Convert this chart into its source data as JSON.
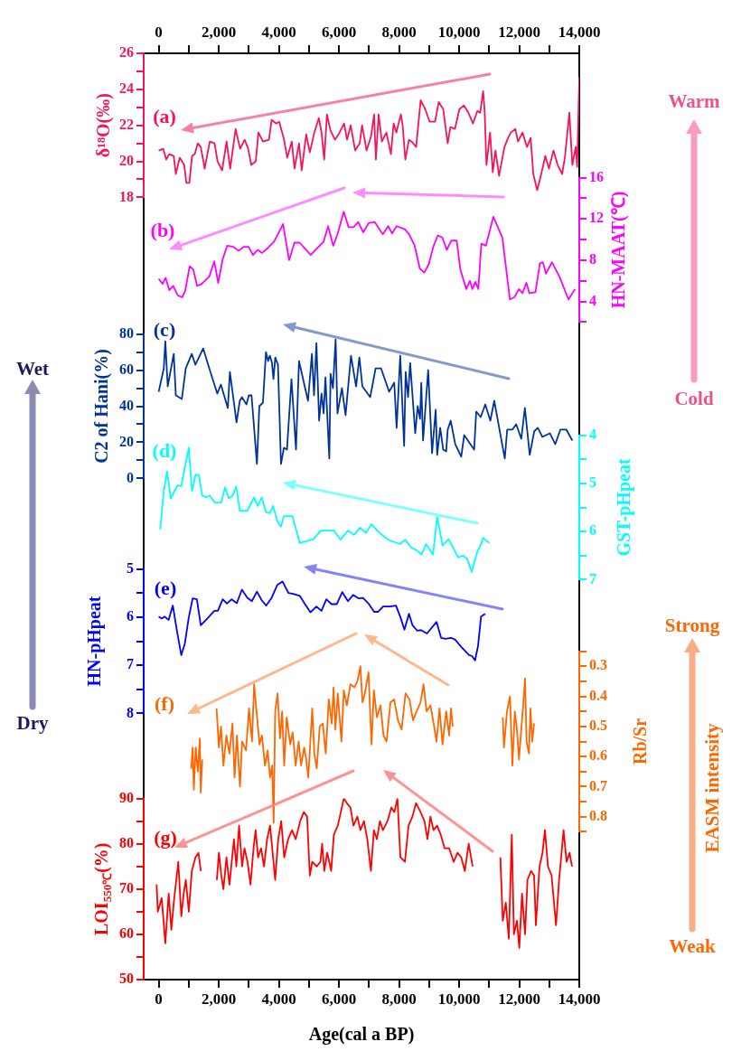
{
  "chart_data": [
    {
      "type": "line",
      "ylabel": "δ¹⁸O(‰)",
      "ylim": [
        18,
        26
      ],
      "yticks": [
        18,
        {
          "value": 19,
          "label": null
        },
        20,
        {
          "value": 21,
          "label": null
        },
        22,
        {
          "value": 23,
          "label": null
        },
        24,
        {
          "value": 25,
          "label": null
        },
        26
      ],
      "xlim": [
        -500,
        14000
      ],
      "xticks": [
        0,
        {
          "value": 1000,
          "label": null
        },
        {
          "value": 2000,
          "label": "2,000"
        },
        {
          "value": 3000,
          "label": null
        },
        {
          "value": 4000,
          "label": "4,000"
        },
        {
          "value": 5000,
          "label": null
        },
        {
          "value": 6000,
          "label": "6,000"
        },
        {
          "value": 7000,
          "label": null
        },
        {
          "value": 8000,
          "label": "8,000"
        },
        {
          "value": 9000,
          "label": null
        },
        {
          "value": 10000,
          "label": "10,000"
        },
        {
          "value": 11000,
          "label": null
        },
        {
          "value": 12000,
          "label": "12,000"
        },
        {
          "value": 13000,
          "label": null
        },
        {
          "value": 14000,
          "label": "14,000"
        }
      ],
      "marker": "none",
      "annotations": [
        "(a)"
      ],
      "series": [
        {
          "color": "#f5145c",
          "x": [
            0,
            150,
            250,
            350,
            500,
            570,
            700,
            850,
            920,
            1020,
            1110,
            1200,
            1300,
            1400,
            1530,
            1700,
            1860,
            1960,
            2110,
            2260,
            2380,
            2560,
            2710,
            2860,
            2980,
            3080,
            3230,
            3320,
            3470,
            3670,
            3760,
            3910,
            4010,
            4160,
            4280,
            4430,
            4520,
            4670,
            4760,
            4910,
            5030,
            5180,
            5330,
            5420,
            5510,
            5600,
            5720,
            5870,
            6020,
            6170,
            6270,
            6390,
            6540,
            6690,
            6770,
            6920,
            7070,
            7170,
            7230,
            7320,
            7430,
            7580,
            7730,
            7820,
            7910,
            8060,
            8120,
            8210,
            8330,
            8420,
            8570,
            8720,
            8870,
            9020,
            9200,
            9320,
            9470,
            9620,
            9710,
            9860,
            10010,
            10160,
            10310,
            10460,
            10610,
            10700,
            10800,
            10850,
            10910,
            11030,
            11120,
            11210,
            11330,
            11420,
            11510,
            11630,
            11720,
            11870,
            11960,
            12110,
            12260,
            12380,
            12470,
            12600,
            12720,
            12870,
            12990,
            13140,
            13280,
            13430,
            13520,
            13670,
            13770,
            13880,
            13930,
            14000
          ],
          "values": [
            20.6,
            20.7,
            20.1,
            20.4,
            20.3,
            19.3,
            20.2,
            19.8,
            18.8,
            18.8,
            20.3,
            20.4,
            21,
            20.8,
            19.6,
            21.1,
            21,
            20,
            19.5,
            21.1,
            19.6,
            21.8,
            20.7,
            21.2,
            20.7,
            19.8,
            20,
            21.6,
            21.1,
            21.2,
            22.3,
            22.1,
            22.2,
            21.3,
            20.2,
            21.1,
            19.6,
            21,
            19.5,
            21.5,
            20.5,
            21.6,
            22.4,
            21.6,
            20.1,
            22.6,
            21.7,
            21.2,
            21.6,
            22.1,
            21.2,
            22,
            20.6,
            21,
            22,
            20.6,
            21.4,
            22.6,
            20.1,
            22.6,
            21.1,
            21.6,
            20.4,
            22.1,
            21.6,
            22.6,
            22,
            20.1,
            21.2,
            21.1,
            20.8,
            23.4,
            22.9,
            22.2,
            22.2,
            23.3,
            22.9,
            21,
            21.9,
            21.8,
            22.9,
            23.1,
            22.7,
            22.1,
            22.8,
            22.7,
            23.9,
            22.8,
            19.8,
            21.6,
            19.4,
            20.6,
            19.2,
            20,
            20.8,
            21.3,
            21.6,
            21.8,
            21.1,
            21.6,
            20.8,
            21.3,
            19.3,
            18.4,
            19.2,
            20.3,
            19.6,
            20.6,
            19.8,
            19.3,
            20.2,
            22.7,
            19.8,
            20.8,
            19.7,
            24.7
          ]
        }
      ]
    },
    {
      "type": "line",
      "ylabel": "HN-MAAT(℃)",
      "ylim": [
        2,
        16
      ],
      "yticks": [
        {
          "value": 2,
          "label": null
        },
        4,
        {
          "value": 6,
          "label": null
        },
        8,
        {
          "value": 10,
          "label": null
        },
        12,
        {
          "value": 14,
          "label": null
        },
        16
      ],
      "xlim": [
        -500,
        14000
      ],
      "tick_labels": "y",
      "marker": "none",
      "annotations": [
        "(b)"
      ],
      "series": [
        {
          "color": "#ff00ff",
          "x": [
            0,
            130,
            230,
            350,
            480,
            630,
            780,
            880,
            1030,
            1150,
            1280,
            1430,
            1680,
            1850,
            1980,
            2130,
            2280,
            2480,
            2660,
            2840,
            2990,
            3140,
            3290,
            3440,
            3640,
            3840,
            4140,
            4340,
            4520,
            4690,
            5060,
            5290,
            5490,
            5640,
            5810,
            5960,
            6160,
            6320,
            6490,
            6640,
            6810,
            6990,
            7190,
            7460,
            7640,
            7770,
            7920,
            8190,
            8340,
            8520,
            8690,
            8840,
            8990,
            9140,
            9290,
            9440,
            9590,
            9740,
            9920,
            10040,
            10240,
            10360,
            10440,
            10540,
            10640,
            10740,
            10890,
            11140,
            11440,
            11690,
            11840,
            11990,
            12110,
            12240,
            12340,
            12540,
            12690,
            12790,
            12890,
            13090,
            13340,
            13640,
            13860
          ],
          "values": [
            6.2,
            5.7,
            6.3,
            5.1,
            5.5,
            4.6,
            4.4,
            5,
            7.4,
            7.1,
            5.5,
            5.7,
            6.4,
            7.9,
            5.8,
            8.1,
            9.4,
            9.3,
            8.9,
            9.3,
            9.3,
            8.5,
            9,
            8.7,
            9.2,
            9.8,
            11.5,
            8,
            9.7,
            9.7,
            8.5,
            9.2,
            9.8,
            11.3,
            9.4,
            10.6,
            12.7,
            11.2,
            11.2,
            11.7,
            10.7,
            11.6,
            11.7,
            10.5,
            11.3,
            10.6,
            11.3,
            11,
            10.5,
            9.4,
            7.2,
            6.8,
            7.6,
            9.3,
            10.4,
            10.2,
            9,
            9.9,
            9.9,
            7.1,
            5.2,
            6,
            5.2,
            5.9,
            5.2,
            9.6,
            9.4,
            12.2,
            10.2,
            4.2,
            4.4,
            5.2,
            4.8,
            5.8,
            4.8,
            4.9,
            7.7,
            7.8,
            6.7,
            7.8,
            6.4,
            4.2,
            5.2
          ]
        }
      ]
    },
    {
      "type": "line",
      "ylabel": "C2 of Hani(%)",
      "ylim": [
        0,
        80
      ],
      "yticks": [
        0,
        {
          "value": 10,
          "label": null
        },
        20,
        {
          "value": 30,
          "label": null
        },
        40,
        {
          "value": 50,
          "label": null
        },
        60,
        {
          "value": 70,
          "label": null
        },
        80
      ],
      "xlim": [
        -500,
        14000
      ],
      "tick_labels": "y",
      "marker": "none",
      "annotations": [
        "(c)"
      ],
      "series": [
        {
          "color": "#003399",
          "x": [
            0,
            170,
            220,
            300,
            500,
            570,
            770,
            900,
            1100,
            1220,
            1480,
            1720,
            1950,
            2070,
            2300,
            2370,
            2590,
            2700,
            2770,
            2920,
            3000,
            3090,
            3270,
            3350,
            3470,
            3570,
            3640,
            3700,
            3770,
            3820,
            3880,
            3970,
            4070,
            4170,
            4270,
            4420,
            4570,
            4670,
            4970,
            5100,
            5170,
            5250,
            5340,
            5420,
            5490,
            5550,
            5680,
            5720,
            5800,
            5890,
            5950,
            6100,
            6220,
            6400,
            6570,
            6680,
            6780,
            7040,
            7220,
            7400,
            7670,
            7840,
            7920,
            8040,
            8170,
            8220,
            8300,
            8370,
            8540,
            8620,
            8700,
            8740,
            8800,
            8970,
            9100,
            9220,
            9270,
            9370,
            9470,
            9570,
            9620,
            9720,
            9870,
            10070,
            10170,
            10500,
            10570,
            10720,
            10870,
            11040,
            11170,
            11520,
            11600,
            11770,
            11900,
            12070,
            12190,
            12350,
            12500,
            12620,
            12770,
            13020,
            13200,
            13370,
            13570,
            13770
          ],
          "values": [
            48,
            61,
            76,
            51,
            69,
            46,
            44,
            61,
            69,
            63,
            72,
            59,
            47,
            52,
            39,
            59,
            31,
            43,
            45,
            41,
            46,
            46,
            8,
            40,
            42,
            70,
            65,
            68,
            64,
            55,
            67,
            63,
            8,
            17,
            16,
            55,
            16,
            65,
            43,
            69,
            46,
            75,
            32,
            47,
            36,
            56,
            11,
            58,
            50,
            77,
            36,
            50,
            35,
            68,
            51,
            67,
            51,
            45,
            61,
            61,
            48,
            53,
            28,
            68,
            18,
            59,
            45,
            64,
            25,
            40,
            33,
            53,
            21,
            60,
            14,
            38,
            13,
            28,
            16,
            15,
            27,
            32,
            19,
            12,
            24,
            16,
            37,
            34,
            41,
            32,
            43,
            11,
            27,
            27,
            30,
            22,
            39,
            13,
            26,
            28,
            23,
            25,
            19,
            27,
            27,
            21
          ]
        }
      ]
    },
    {
      "type": "line",
      "ylabel": "GST-pHpeat",
      "ylim": [
        7,
        4
      ],
      "yticks": [
        4,
        {
          "value": 4.5,
          "label": null
        },
        5,
        {
          "value": 5.5,
          "label": null
        },
        6,
        {
          "value": 6.5,
          "label": null
        },
        7
      ],
      "xlim": [
        -500,
        14000
      ],
      "tick_labels": "y",
      "marker": "none",
      "annotations": [
        "(d)"
      ],
      "series": [
        {
          "color": "#00ffff",
          "x": [
            50,
            170,
            280,
            400,
            500,
            630,
            750,
            850,
            1000,
            1110,
            1230,
            1330,
            1450,
            1570,
            1700,
            1870,
            2080,
            2210,
            2330,
            2450,
            2580,
            2700,
            2950,
            3170,
            3300,
            3430,
            3570,
            3700,
            3810,
            3950,
            4070,
            4170,
            4450,
            4700,
            5150,
            5400,
            5830,
            6050,
            6300,
            6500,
            6700,
            6900,
            7080,
            7300,
            7550,
            7700,
            8030,
            8210,
            8400,
            8580,
            8750,
            8900,
            9130,
            9270,
            9450,
            9650,
            9970,
            10130,
            10270,
            10420,
            10600,
            10700,
            10800,
            11000
          ],
          "values": [
            5.96,
            5.16,
            4.75,
            5.32,
            5.19,
            5.04,
            5.06,
            4.73,
            4.26,
            5.16,
            4.82,
            4.82,
            5.25,
            5.29,
            5.25,
            5.4,
            5.4,
            5.08,
            5.31,
            5.27,
            5.06,
            5.57,
            5.57,
            5.29,
            5.47,
            5.29,
            5.6,
            5.62,
            5.47,
            5.79,
            5.9,
            5.68,
            5.68,
            6.24,
            6.16,
            5.98,
            5.98,
            6.17,
            5.98,
            6.07,
            5.92,
            6.03,
            5.85,
            6,
            6.13,
            6.19,
            6.26,
            6.17,
            6.33,
            6.39,
            6.48,
            6.26,
            6.48,
            5.7,
            6.29,
            6.16,
            6.54,
            6.5,
            6.57,
            6.84,
            6.43,
            6.31,
            6.13,
            6.24
          ]
        }
      ]
    },
    {
      "type": "line",
      "ylabel": "HN-pHpeat",
      "ylim": [
        8,
        5
      ],
      "yticks": [
        5,
        {
          "value": 5.5,
          "label": null
        },
        6,
        {
          "value": 6.5,
          "label": null
        },
        7,
        {
          "value": 7.5,
          "label": null
        },
        8
      ],
      "xlim": [
        -500,
        14000
      ],
      "tick_labels": "y",
      "marker": "none",
      "annotations": [
        "(e)"
      ],
      "series": [
        {
          "color": "#0000ff",
          "x": [
            0,
            100,
            200,
            330,
            470,
            600,
            750,
            870,
            1000,
            1130,
            1270,
            1400,
            1650,
            1850,
            1970,
            2130,
            2270,
            2430,
            2600,
            2770,
            2950,
            3100,
            3270,
            3430,
            3580,
            3750,
            3950,
            4120,
            4320,
            4500,
            4700,
            4870,
            5050,
            5250,
            5420,
            5580,
            5750,
            5930,
            6110,
            6300,
            6470,
            6650,
            6800,
            7000,
            7170,
            7300,
            7470,
            7700,
            7900,
            8050,
            8180,
            8330,
            8450,
            8600,
            8730,
            8930,
            9250,
            9400,
            9550,
            9730,
            9870,
            10100,
            10330,
            10430,
            10530,
            10630,
            10730,
            10870
          ],
          "values": [
            5.99,
            6.03,
            5.99,
            6.06,
            5.76,
            6.26,
            6.79,
            6.55,
            6.01,
            5.61,
            5.63,
            6.17,
            6.01,
            5.87,
            5.87,
            5.63,
            5.72,
            5.63,
            5.71,
            5.43,
            5.6,
            5.67,
            5.47,
            5.65,
            5.76,
            5.61,
            5.33,
            5.26,
            5.5,
            5.52,
            5.56,
            5.73,
            5.9,
            5.78,
            5.87,
            5.63,
            5.73,
            5.73,
            5.48,
            5.67,
            5.54,
            5.61,
            5.6,
            5.73,
            5.89,
            5.89,
            5.78,
            5.78,
            5.76,
            6.01,
            6.26,
            5.93,
            6.17,
            6.28,
            6.27,
            6.34,
            6.1,
            6.43,
            6.45,
            6.43,
            6.47,
            6.64,
            6.79,
            6.81,
            6.9,
            6.6,
            5.99,
            5.93
          ]
        }
      ]
    },
    {
      "type": "line",
      "ylabel": "Rb/Sr",
      "ylim": [
        0.85,
        0.25
      ],
      "yticks": [
        {
          "value": 0.25,
          "label": null
        },
        0.3,
        {
          "value": 0.35,
          "label": null
        },
        0.4,
        {
          "value": 0.45,
          "label": null
        },
        0.5,
        {
          "value": 0.55,
          "label": null
        },
        0.6,
        {
          "value": 0.65,
          "label": null
        },
        0.7,
        {
          "value": 0.75,
          "label": null
        },
        0.8,
        {
          "value": 0.85,
          "label": null
        }
      ],
      "xlim": [
        -500,
        14000
      ],
      "tick_labels": "y",
      "marker": "none",
      "annotations": [
        "(f)"
      ],
      "series": [
        {
          "color": "#ff6600",
          "x": [
            1082,
            1130,
            1170,
            1230,
            1300,
            1370,
            1400,
            1450,
            1700,
            1925,
            2004,
            2074,
            2154,
            2255,
            2355,
            2455,
            2525,
            2605,
            2705,
            2776,
            2906,
            3006,
            3106,
            3176,
            3256,
            3357,
            3437,
            3537,
            3627,
            3707,
            3777,
            3827,
            3877,
            3958,
            4038,
            4108,
            4178,
            4259,
            4379,
            4459,
            4559,
            4659,
            4740,
            4840,
            4910,
            4980,
            5110,
            5180,
            5260,
            5360,
            5461,
            5561,
            5661,
            5761,
            5821,
            5881,
            5962,
            6082,
            6162,
            6262,
            6383,
            6513,
            6613,
            6713,
            6783,
            6863,
            6983,
            7084,
            7164,
            7264,
            7384,
            7485,
            7585,
            7715,
            7835,
            7966,
            8086,
            8216,
            8346,
            8466,
            8586,
            8716,
            8817,
            8917,
            9047,
            9168,
            9248,
            9348,
            9448,
            9568,
            9669,
            9729,
            9789,
            10600,
            11453,
            11493,
            11594,
            11694,
            11774,
            11854,
            11924,
            11994,
            12075,
            12125,
            12195,
            12245,
            12325,
            12375,
            12435,
            12496
          ],
          "values": [
            0.64,
            0.57,
            0.71,
            0.57,
            0.65,
            0.54,
            0.72,
            0.61,
            null,
            0.44,
            0.57,
            0.5,
            0.63,
            0.53,
            0.59,
            0.49,
            0.67,
            0.53,
            0.7,
            0.55,
            0.58,
            0.44,
            0.55,
            0.36,
            0.45,
            0.56,
            0.53,
            0.63,
            0.58,
            0.67,
            0.63,
            0.82,
            0.45,
            0.39,
            0.54,
            0.45,
            0.63,
            0.47,
            0.56,
            0.52,
            0.63,
            0.55,
            0.63,
            0.57,
            0.61,
            0.67,
            0.44,
            0.59,
            0.64,
            0.5,
            0.49,
            0.59,
            0.41,
            0.49,
            0.37,
            0.51,
            0.39,
            0.55,
            0.38,
            0.43,
            0.36,
            0.37,
            0.35,
            0.3,
            0.42,
            0.39,
            0.32,
            0.56,
            0.38,
            0.47,
            0.43,
            0.53,
            0.55,
            0.42,
            0.41,
            0.48,
            0.51,
            0.39,
            0.41,
            0.48,
            0.45,
            0.42,
            0.36,
            0.45,
            0.43,
            0.5,
            0.55,
            0.44,
            0.56,
            0.45,
            0.53,
            0.44,
            0.5,
            null,
            0.47,
            0.57,
            0.45,
            0.4,
            0.63,
            0.45,
            0.51,
            0.61,
            0.5,
            0.44,
            0.34,
            0.55,
            0.59,
            0.44,
            0.55,
            0.49
          ]
        }
      ]
    },
    {
      "type": "line",
      "ylabel": "LOI$_{550℃}$(%)",
      "ylim": [
        50,
        90
      ],
      "yticks": [
        50,
        {
          "value": 55,
          "label": null
        },
        60,
        {
          "value": 65,
          "label": null
        },
        70,
        {
          "value": 75,
          "label": null
        },
        80,
        {
          "value": 85,
          "label": null
        },
        90
      ],
      "xlabel": "Age(cal a BP)",
      "xlim": [
        -500,
        14000
      ],
      "xticks": [
        0,
        {
          "value": 1000,
          "label": null
        },
        {
          "value": 2000,
          "label": "2,000"
        },
        {
          "value": 3000,
          "label": null
        },
        {
          "value": 4000,
          "label": "4,000"
        },
        {
          "value": 5000,
          "label": null
        },
        {
          "value": 6000,
          "label": "6,000"
        },
        {
          "value": 7000,
          "label": null
        },
        {
          "value": 8000,
          "label": "8,000"
        },
        {
          "value": 9000,
          "label": null
        },
        {
          "value": 10000,
          "label": "10,000"
        },
        {
          "value": 11000,
          "label": null
        },
        {
          "value": 12000,
          "label": "12,000"
        },
        {
          "value": 13000,
          "label": null
        },
        {
          "value": 14000,
          "label": "14,000"
        }
      ],
      "marker": "none",
      "annotations": [
        "(g)"
      ],
      "series": [
        {
          "color": "#ff0000",
          "x": [
            -70,
            -30,
            100,
            220,
            331,
            421,
            501,
            651,
            752,
            831,
            902,
            1002,
            1102,
            1222,
            1323,
            1403,
            1650,
            1934,
            2004,
            2084,
            2154,
            2255,
            2355,
            2505,
            2585,
            2675,
            2776,
            2856,
            2956,
            3056,
            3156,
            3226,
            3307,
            3407,
            3507,
            3607,
            3707,
            3807,
            3877,
            3978,
            4078,
            4178,
            4308,
            4439,
            4559,
            4710,
            4830,
            4940,
            5030,
            5110,
            5260,
            5381,
            5441,
            5511,
            5611,
            5741,
            5831,
            5962,
            6162,
            6262,
            6383,
            6483,
            6613,
            6713,
            6833,
            6943,
            7064,
            7164,
            7264,
            7364,
            7465,
            7615,
            7745,
            7845,
            7946,
            8046,
            8196,
            8316,
            8446,
            8566,
            8716,
            8846,
            8947,
            9047,
            9147,
            9268,
            9388,
            9518,
            9669,
            9819,
            9949,
            10070,
            10190,
            10320,
            10450,
            10900,
            11373,
            11453,
            11554,
            11654,
            11754,
            11824,
            11924,
            12004,
            12094,
            12195,
            12275,
            12395,
            12496,
            12556,
            12676,
            12776,
            12857,
            12957,
            13077,
            13227,
            13327,
            13397,
            13477,
            13577,
            13677,
            13757
          ],
          "values": [
            71,
            65,
            68,
            58,
            69,
            61,
            67,
            76,
            64,
            69,
            72,
            65,
            74,
            77,
            78,
            74,
            null,
            72,
            78,
            73,
            70,
            77,
            71,
            81,
            75,
            84,
            75,
            79,
            76,
            71,
            79,
            83,
            77,
            79,
            75,
            81,
            84,
            77,
            72,
            81,
            85,
            77,
            81,
            83,
            81,
            85,
            87,
            86,
            73,
            76,
            75,
            76,
            80,
            74,
            78,
            74,
            82,
            84,
            90,
            89,
            88,
            84,
            86,
            83,
            85,
            81,
            74,
            83,
            81,
            85,
            83,
            85,
            88,
            87,
            90,
            77,
            76,
            84,
            86,
            89,
            87,
            85,
            81,
            86,
            83,
            84,
            82,
            79,
            79,
            76,
            78,
            77,
            74,
            80,
            75,
            null,
            77,
            63,
            67,
            59,
            82,
            60,
            63,
            57,
            69,
            60,
            72,
            74,
            73,
            62,
            75,
            78,
            83,
            75,
            73,
            62,
            72,
            77,
            83,
            76,
            78,
            75
          ]
        }
      ]
    },
    {
      "type": "other",
      "annotations": [
        "Warm",
        "Cold",
        "Wet",
        "Dry",
        "Strong",
        "Weak",
        "EASM intensity"
      ]
    }
  ]
}
